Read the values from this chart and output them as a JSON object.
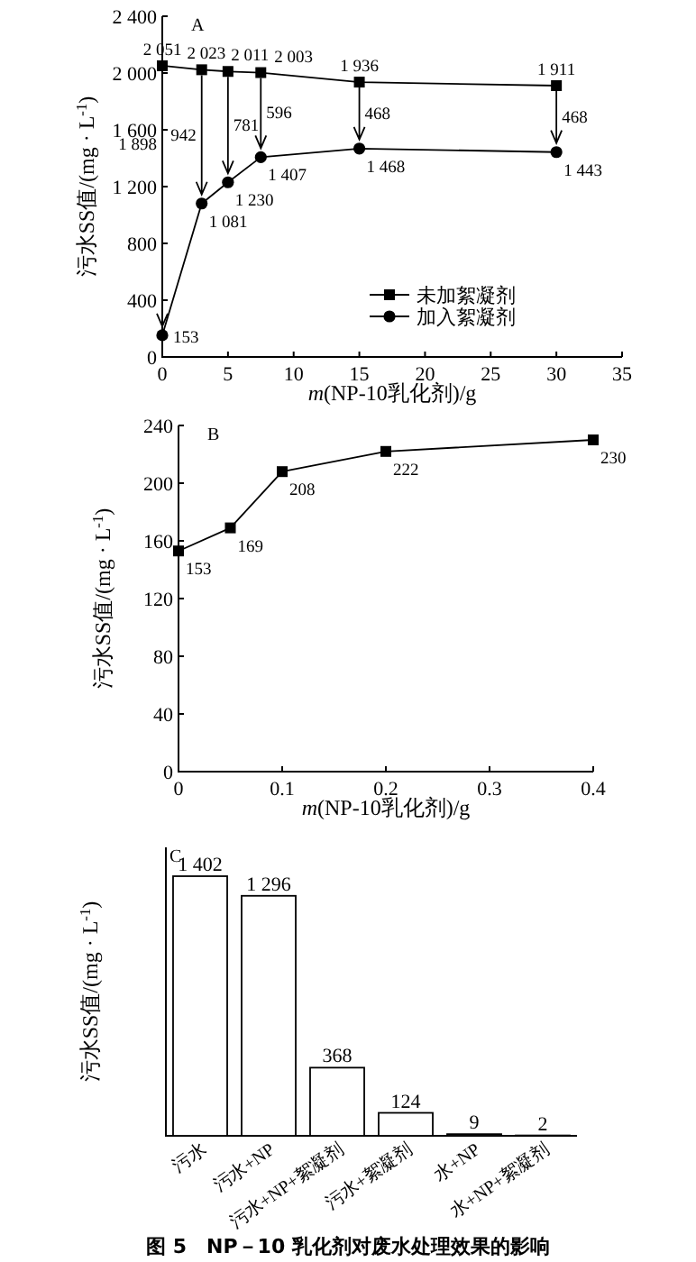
{
  "chart_data": [
    {
      "type": "line",
      "title": "A",
      "xlabel": "*m*(NP-10乳化剂)/g",
      "ylabel": "污水SS值/(mg · L$^{-1}$)",
      "x": [
        0,
        3,
        5,
        7.5,
        15,
        30
      ],
      "series": [
        {
          "name": "未加絮凝剂",
          "color": "#000000",
          "marker": "square",
          "values": [
            2051,
            2023,
            2011,
            2003,
            1936,
            1911
          ],
          "value_labels": [
            "2 051",
            "2 023",
            "2 011",
            "2 003",
            "1 936",
            "1 911"
          ]
        },
        {
          "name": "加入絮凝剂",
          "color": "#000000",
          "marker": "circle",
          "values": [
            153,
            1081,
            1230,
            1407,
            1468,
            1443
          ],
          "value_labels": [
            "153",
            "1 081",
            "1 230",
            "1 407",
            "1 468",
            "1 443"
          ]
        }
      ],
      "xlim": [
        0,
        35
      ],
      "ylim": [
        0,
        2400
      ],
      "xticks": [
        0,
        5,
        10,
        15,
        20,
        25,
        30,
        35
      ],
      "yticks": [
        0,
        400,
        800,
        {
          "value": 1200,
          "label": "1 200"
        },
        {
          "value": 1600,
          "label": "1 600"
        },
        {
          "value": 2000,
          "label": "2 000"
        },
        {
          "value": 2400,
          "label": "2 400"
        }
      ],
      "legend": "right",
      "annotations": [
        "1 898",
        "942",
        "781",
        "596",
        "468",
        "468"
      ]
    },
    {
      "type": "line",
      "title": "B",
      "xlabel": "*m*(NP-10乳化剂)/g",
      "ylabel": "污水SS值/(mg · L$^{-1}$)",
      "x": [
        0,
        0.05,
        0.1,
        0.2,
        0.4
      ],
      "values": [
        153,
        169,
        208,
        222,
        230
      ],
      "color": "#000000",
      "marker": "square",
      "xlim": [
        0,
        0.4
      ],
      "ylim": [
        0,
        240
      ],
      "xticks": [
        0,
        0.1,
        0.2,
        0.3,
        0.4
      ],
      "yticks": [
        0,
        40,
        80,
        120,
        160,
        200,
        240
      ],
      "data_labels": true
    },
    {
      "type": "bar",
      "title": "C",
      "ylabel": "污水SS值/(mg · L$^{-1}$)",
      "categories": [
        "污水",
        "污水+NP",
        "污水+NP+絮凝剂",
        "污水+絮凝剂",
        "水+NP",
        "水+NP+絮凝剂"
      ],
      "values": [
        1402,
        1296,
        368,
        124,
        9,
        2
      ],
      "color": "#ffffff",
      "value_labels": [
        "1 402",
        "1 296",
        "368",
        "124",
        "9",
        "2"
      ],
      "annotations": [
        "**图 5　NP－10 乳化剂对废水处理效果的影响**"
      ]
    }
  ]
}
